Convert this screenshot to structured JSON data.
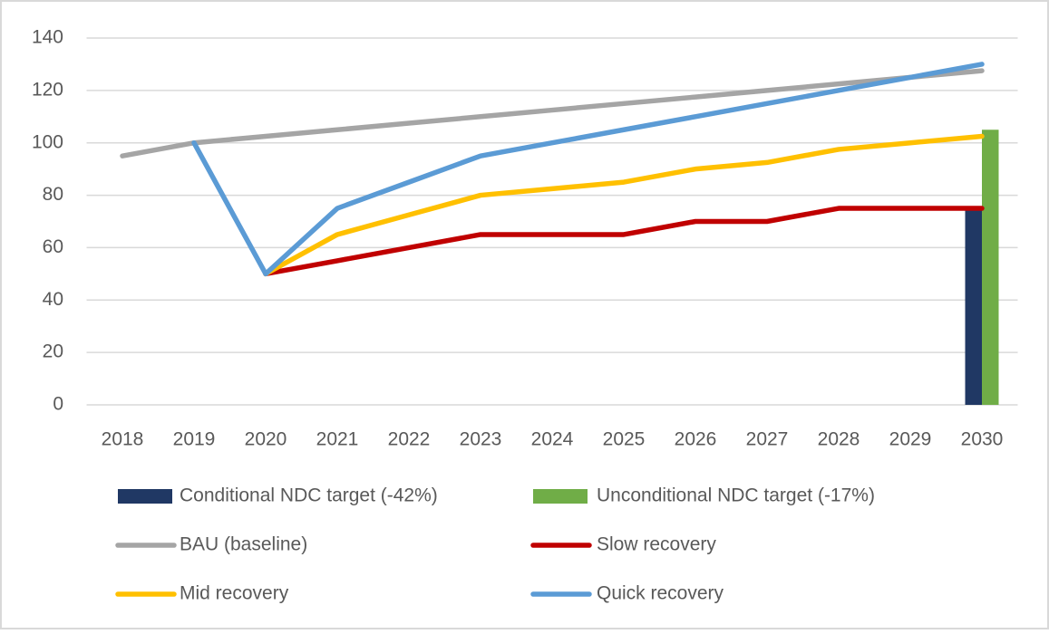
{
  "chart_data": {
    "type": "line",
    "categories": [
      "2018",
      "2019",
      "2020",
      "2021",
      "2022",
      "2023",
      "2024",
      "2025",
      "2026",
      "2027",
      "2028",
      "2029",
      "2030"
    ],
    "series": [
      {
        "name": "Conditional NDC target (-42%)",
        "type": "bar",
        "color": "#203864",
        "values": [
          null,
          null,
          null,
          null,
          null,
          null,
          null,
          null,
          null,
          null,
          null,
          null,
          75
        ]
      },
      {
        "name": "Unconditional NDC target (-17%)",
        "type": "bar",
        "color": "#70ad47",
        "values": [
          null,
          null,
          null,
          null,
          null,
          null,
          null,
          null,
          null,
          null,
          null,
          null,
          105
        ]
      },
      {
        "name": "BAU (baseline)",
        "type": "line",
        "color": "#a5a5a5",
        "values": [
          95,
          100,
          102.5,
          105,
          107.5,
          110,
          112.5,
          115,
          117.5,
          120,
          122.5,
          125,
          127.5
        ]
      },
      {
        "name": "Slow recovery",
        "type": "line",
        "color": "#c00000",
        "values": [
          null,
          null,
          50,
          55,
          60,
          65,
          65,
          65,
          70,
          70,
          75,
          75,
          75
        ]
      },
      {
        "name": "Mid recovery",
        "type": "line",
        "color": "#ffc000",
        "values": [
          null,
          null,
          50,
          65,
          72.5,
          80,
          82.5,
          85,
          90,
          92.5,
          97.5,
          100,
          102.5
        ]
      },
      {
        "name": "Quick recovery",
        "type": "line",
        "color": "#5b9bd5",
        "values": [
          null,
          100,
          50,
          75,
          85,
          95,
          100,
          105,
          110,
          115,
          120,
          125,
          130
        ]
      }
    ],
    "ylim": [
      0,
      140
    ],
    "yticks": [
      0,
      20,
      40,
      60,
      80,
      100,
      120,
      140
    ],
    "grid": true,
    "legend": "bottom"
  }
}
